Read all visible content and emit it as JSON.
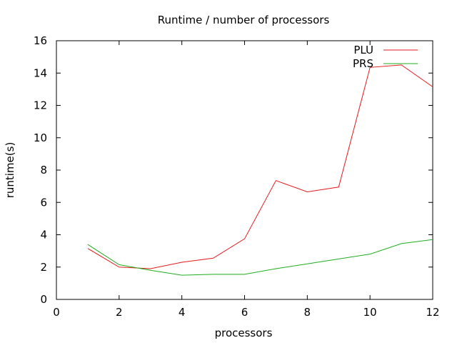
{
  "chart_data": {
    "type": "line",
    "title": "Runtime / number of processors",
    "xlabel": "processors",
    "ylabel": "runtime(s)",
    "xlim": [
      0,
      12
    ],
    "ylim": [
      0,
      16
    ],
    "xticks": [
      0,
      2,
      4,
      6,
      8,
      10,
      12
    ],
    "yticks": [
      0,
      2,
      4,
      6,
      8,
      10,
      12,
      14,
      16
    ],
    "grid": false,
    "legend_position": "top-right",
    "x": [
      1,
      2,
      3,
      4,
      5,
      6,
      7,
      8,
      9,
      10,
      11,
      12
    ],
    "series": [
      {
        "name": "PLU",
        "color": "#e41a1c",
        "values": [
          3.15,
          2.0,
          1.9,
          2.3,
          2.55,
          3.75,
          7.35,
          6.65,
          6.95,
          14.35,
          14.5,
          13.15
        ]
      },
      {
        "name": "PRS",
        "color": "#1fae1f",
        "values": [
          3.4,
          2.15,
          1.8,
          1.5,
          1.55,
          1.55,
          1.9,
          2.2,
          2.5,
          2.8,
          3.45,
          3.7
        ]
      }
    ]
  }
}
